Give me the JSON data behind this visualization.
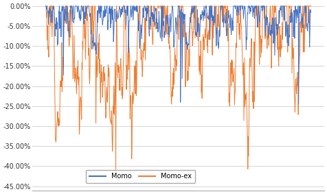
{
  "ylim": [
    -0.46,
    0.005
  ],
  "yticks": [
    0.0,
    -0.05,
    -0.1,
    -0.15,
    -0.2,
    -0.25,
    -0.3,
    -0.35,
    -0.4,
    -0.45
  ],
  "momo_color": "#4472C4",
  "momoex_color": "#ED7D31",
  "legend_labels": [
    "Momo",
    "Momo-ex"
  ],
  "background_color": "#FFFFFF",
  "grid_color": "#D9D9D9",
  "n_points": 800,
  "seed": 7,
  "momo_max_dd": 0.245,
  "momoex_max_dd": 0.412,
  "linewidth": 0.7
}
